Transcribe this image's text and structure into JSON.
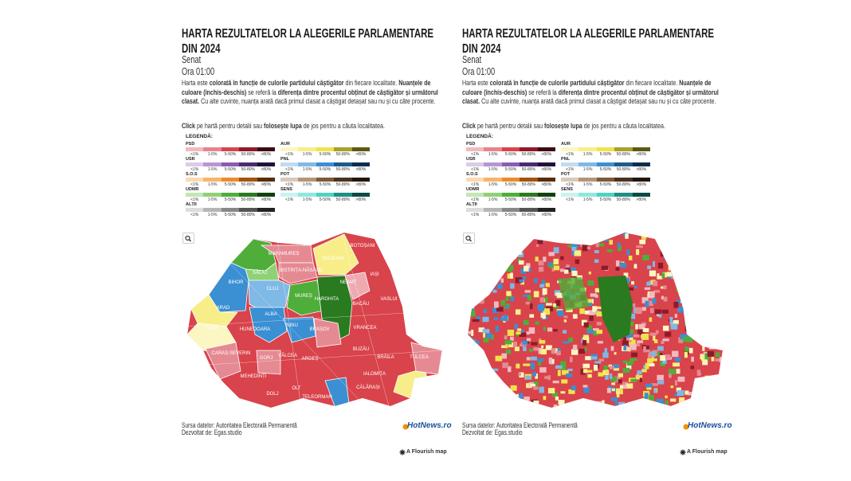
{
  "panels": [
    {
      "title": "HARTA REZULTATELOR LA ALEGERILE PARLAMENTARE DIN 2024",
      "subtitle": "Senat",
      "time": "Ora 01:00",
      "description": [
        {
          "text": "Harta este ",
          "bold": false
        },
        {
          "text": "colorată în funcție de culorile partidului câștigător",
          "bold": true
        },
        {
          "text": " din fiecare localitate. ",
          "bold": false
        },
        {
          "text": "Nuanțele de culoare (închis-deschis)",
          "bold": true
        },
        {
          "text": " se referă la ",
          "bold": false
        },
        {
          "text": "diferența dintre procentul obținut de câștigător și următorul clasat.",
          "bold": true
        },
        {
          "text": " Cu alte cuvinte, nuanța arată dacă primul clasat a câștigat detașat sau nu și cu câte procente.",
          "bold": false
        }
      ],
      "instruction": [
        {
          "text": "Click",
          "bold": true
        },
        {
          "text": " pe hartă pentru detalii sau ",
          "bold": false
        },
        {
          "text": "folosește lupa",
          "bold": true
        },
        {
          "text": " de jos pentru a căuta localitatea.",
          "bold": false
        }
      ],
      "legend": {
        "title": "LEGENDĂ:",
        "levels": [
          "<1%",
          "1-5%",
          "5-50%",
          "50-80%",
          ">80%"
        ],
        "parties": [
          {
            "name": "PSD",
            "colors": [
              "#f2b9bf",
              "#e8838c",
              "#d9434b",
              "#8e1b2a",
              "#3d0a12"
            ]
          },
          {
            "name": "USR",
            "colors": [
              "#dccbe8",
              "#b896d4",
              "#8a5bb5",
              "#4a2a70",
              "#22103a"
            ]
          },
          {
            "name": "S.O.S",
            "colors": [
              "#fcd9b0",
              "#f7b46a",
              "#ee8a2a",
              "#a35510",
              "#5a2d05"
            ]
          },
          {
            "name": "UDMR",
            "colors": [
              "#c2e6b5",
              "#8fd177",
              "#4fae3a",
              "#2a7a1f",
              "#124010"
            ]
          },
          {
            "name": "ALȚII",
            "colors": [
              "#dddddd",
              "#b5b5b5",
              "#888888",
              "#555555",
              "#222222"
            ]
          },
          {
            "name": "AUR",
            "colors": [
              "#fbf6c2",
              "#f7ee8a",
              "#f1e24c",
              "#a8a12a",
              "#5c5a12"
            ]
          },
          {
            "name": "PNL",
            "colors": [
              "#bfdcf3",
              "#7fb9e6",
              "#3b8fd3",
              "#1d5a90",
              "#0b2e4e"
            ]
          },
          {
            "name": "POT",
            "colors": [
              "#d9c9b8",
              "#b39679",
              "#7d5a3a",
              "#4a3320",
              "#22160c"
            ]
          },
          {
            "name": "SENS",
            "colors": [
              "#c9f4ef",
              "#8fe8de",
              "#4fd1c3",
              "#1f8f84",
              "#0c4b45"
            ]
          }
        ]
      },
      "map": {
        "style": "county",
        "counties": [
          "MARAMUREȘ",
          "SUCEAVA",
          "BOTOȘANI",
          "SĂLAJ",
          "BISTRIȚA-NĂSĂUD",
          "IAȘI",
          "BIHOR",
          "CLUJ",
          "NEAMȚ",
          "MUREȘ",
          "HARGHITA",
          "BACĂU",
          "VASLUI",
          "ARAD",
          "ALBA",
          "SIBIU",
          "TIMIȘ",
          "HUNEDOARA",
          "BRAȘOV",
          "VRANCEA",
          "CARAȘ-SEVERIN",
          "GORJ",
          "VÂLCEA",
          "ARGEȘ",
          "BUZĂU",
          "BRĂILA",
          "TULCEA",
          "MEHEDINȚI",
          "IALOMIȚA",
          "DOLJ",
          "OLT",
          "TELEORMAN",
          "CĂLĂRAȘI"
        ]
      },
      "source": "Sursa datelor: Autoritatea Electorală Permanentă",
      "developer": "Dezvoltat de: Egas.studio",
      "logo": "HotNews.ro",
      "credit": "A Flourish map"
    },
    {
      "title": "HARTA REZULTATELOR LA ALEGERILE PARLAMENTARE DIN 2024",
      "subtitle": "Senat",
      "time": "Ora 01:00",
      "description": [
        {
          "text": "Harta este ",
          "bold": false
        },
        {
          "text": "colorată în funcție de culorile partidului câștigător",
          "bold": true
        },
        {
          "text": " din fiecare localitate. ",
          "bold": false
        },
        {
          "text": "Nuanțele de culoare (închis-deschis)",
          "bold": true
        },
        {
          "text": " se referă la ",
          "bold": false
        },
        {
          "text": "diferența dintre procentul obținut de câștigător și următorul clasat.",
          "bold": true
        },
        {
          "text": " Cu alte cuvinte, nuanța arată dacă primul clasat a câștigat detașat sau nu și cu câte procente.",
          "bold": false
        }
      ],
      "instruction": [
        {
          "text": "Click",
          "bold": true
        },
        {
          "text": " pe hartă pentru detalii sau ",
          "bold": false
        },
        {
          "text": "folosește lupa",
          "bold": true
        },
        {
          "text": " de jos pentru a căuta localitatea.",
          "bold": false
        }
      ],
      "legend": {
        "title": "LEGENDĂ:",
        "levels": [
          "<1%",
          "1-5%",
          "5-50%",
          "50-80%",
          ">80%"
        ],
        "parties": [
          {
            "name": "PSD",
            "colors": [
              "#f2b9bf",
              "#e8838c",
              "#d9434b",
              "#8e1b2a",
              "#3d0a12"
            ]
          },
          {
            "name": "USR",
            "colors": [
              "#dccbe8",
              "#b896d4",
              "#8a5bb5",
              "#4a2a70",
              "#22103a"
            ]
          },
          {
            "name": "S.O.S",
            "colors": [
              "#fcd9b0",
              "#f7b46a",
              "#ee8a2a",
              "#a35510",
              "#5a2d05"
            ]
          },
          {
            "name": "UDMR",
            "colors": [
              "#c2e6b5",
              "#8fd177",
              "#4fae3a",
              "#2a7a1f",
              "#124010"
            ]
          },
          {
            "name": "ALȚII",
            "colors": [
              "#dddddd",
              "#b5b5b5",
              "#888888",
              "#555555",
              "#222222"
            ]
          },
          {
            "name": "AUR",
            "colors": [
              "#fbf6c2",
              "#f7ee8a",
              "#f1e24c",
              "#a8a12a",
              "#5c5a12"
            ]
          },
          {
            "name": "PNL",
            "colors": [
              "#bfdcf3",
              "#7fb9e6",
              "#3b8fd3",
              "#1d5a90",
              "#0b2e4e"
            ]
          },
          {
            "name": "POT",
            "colors": [
              "#d9c9b8",
              "#b39679",
              "#7d5a3a",
              "#4a3320",
              "#22160c"
            ]
          },
          {
            "name": "SENS",
            "colors": [
              "#c9f4ef",
              "#8fe8de",
              "#4fd1c3",
              "#1f8f84",
              "#0c4b45"
            ]
          }
        ]
      },
      "map": {
        "style": "locality"
      },
      "source": "Sursa datelor: Autoritatea Electorală Permanentă",
      "developer": "Dezvoltat de: Egas.studio",
      "logo": "HotNews.ro",
      "credit": "A Flourish map"
    }
  ]
}
